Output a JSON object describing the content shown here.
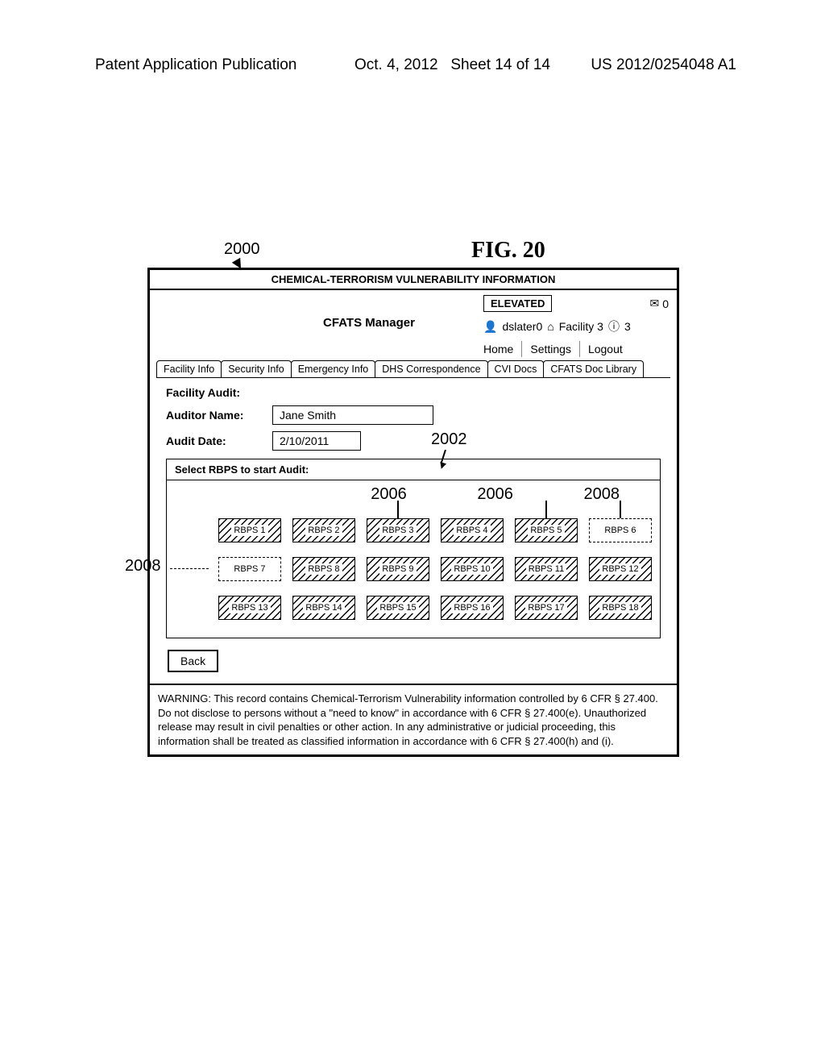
{
  "page_header": {
    "left": "Patent Application Publication",
    "date": "Oct. 4, 2012",
    "sheet": "Sheet 14 of 14",
    "right": "US 2012/0254048 A1"
  },
  "figure_label": "FIG. 20",
  "reference_numerals": {
    "window": "2000",
    "panel": "2002",
    "hatched_a": "2006",
    "hatched_b": "2006",
    "dashed_a": "2008",
    "dashed_b": "2008"
  },
  "window": {
    "title": "CHEMICAL-TERRORISM VULNERABILITY INFORMATION",
    "app_name": "CFATS Manager",
    "status": "ELEVATED",
    "mail_count": "0",
    "user": "dslater0",
    "facility": "Facility 3",
    "facility_badge": "3",
    "nav": {
      "home": "Home",
      "settings": "Settings",
      "logout": "Logout"
    }
  },
  "tabs": [
    "Facility Info",
    "Security Info",
    "Emergency Info",
    "DHS Correspondence",
    "CVI Docs",
    "CFATS Doc Library"
  ],
  "form": {
    "section_label": "Facility Audit:",
    "auditor_label": "Auditor Name:",
    "auditor_value": "Jane Smith",
    "date_label": "Audit Date:",
    "date_value": "2/10/2011"
  },
  "panel": {
    "title": "Select RBPS to start Audit:",
    "buttons": [
      {
        "label": "RBPS 1",
        "style": "hatched"
      },
      {
        "label": "RBPS 2",
        "style": "hatched"
      },
      {
        "label": "RBPS 3",
        "style": "hatched"
      },
      {
        "label": "RBPS 4",
        "style": "hatched"
      },
      {
        "label": "RBPS 5",
        "style": "hatched"
      },
      {
        "label": "RBPS 6",
        "style": "dashed"
      },
      {
        "label": "RBPS 7",
        "style": "dashed"
      },
      {
        "label": "RBPS 8",
        "style": "hatched"
      },
      {
        "label": "RBPS 9",
        "style": "hatched"
      },
      {
        "label": "RBPS 10",
        "style": "hatched"
      },
      {
        "label": "RBPS 11",
        "style": "hatched"
      },
      {
        "label": "RBPS 12",
        "style": "hatched"
      },
      {
        "label": "RBPS 13",
        "style": "hatched"
      },
      {
        "label": "RBPS 14",
        "style": "hatched"
      },
      {
        "label": "RBPS 15",
        "style": "hatched"
      },
      {
        "label": "RBPS 16",
        "style": "hatched"
      },
      {
        "label": "RBPS 17",
        "style": "hatched"
      },
      {
        "label": "RBPS 18",
        "style": "hatched"
      }
    ]
  },
  "back_label": "Back",
  "warning": "WARNING: This record contains Chemical-Terrorism Vulnerability information controlled by 6 CFR § 27.400.  Do not disclose to persons without a \"need to know\" in accordance with 6 CFR § 27.400(e).  Unauthorized release may result in civil penalties or other action.  In any administrative or judicial proceeding, this information shall be treated as classified information in accordance with 6 CFR § 27.400(h) and (i)."
}
